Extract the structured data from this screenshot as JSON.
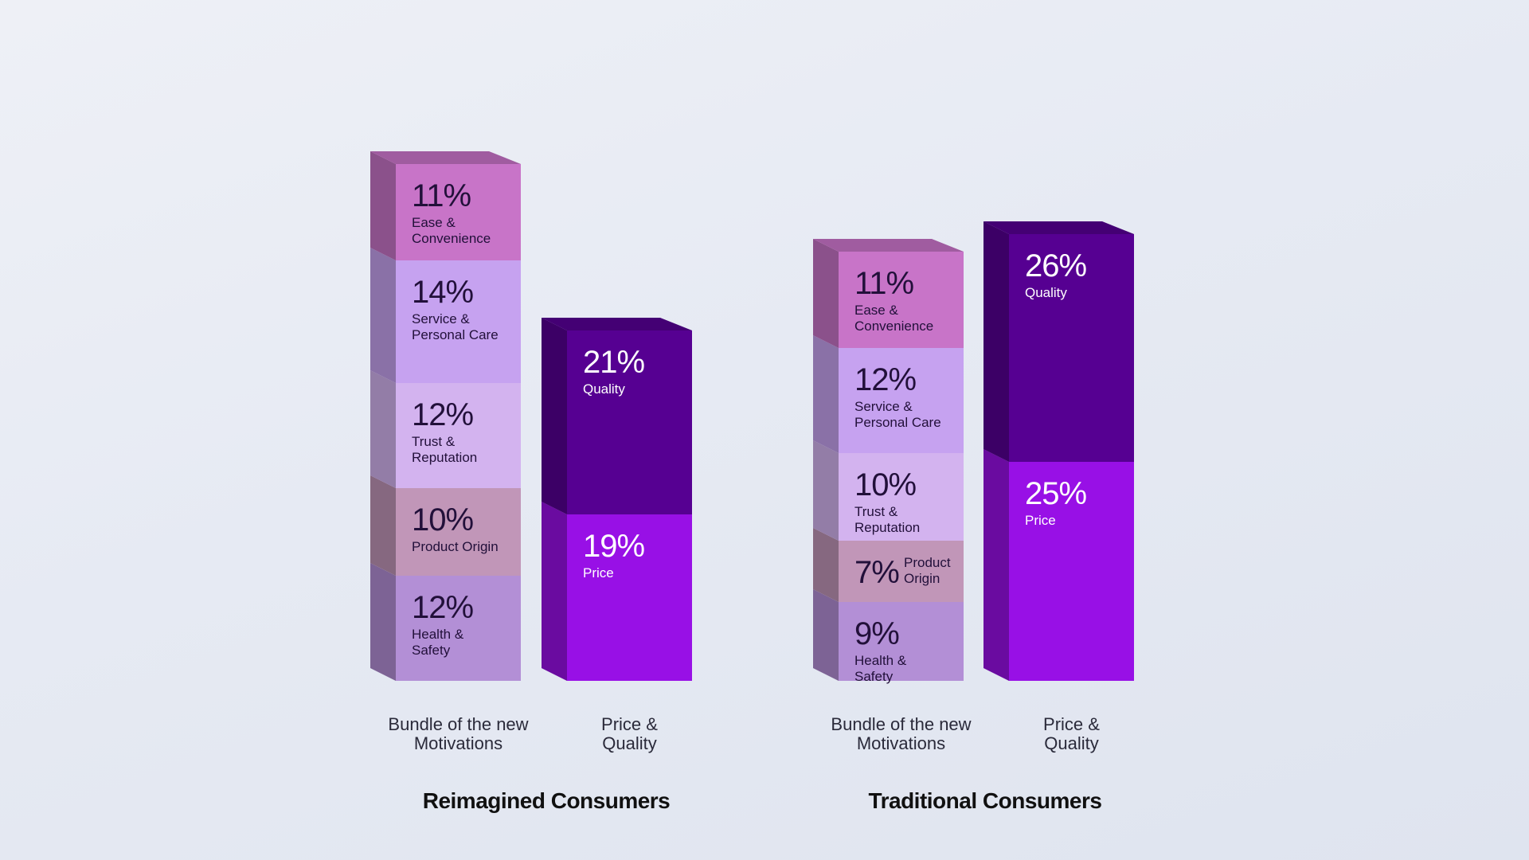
{
  "chart_data": [
    {
      "type": "stacked-bar-3d",
      "title": "Reimagined Consumers",
      "categories": [
        "Bundle of the new Motivations",
        "Price & Quality"
      ],
      "series": [
        {
          "name": "Health & Safety",
          "color": "#b38fd6",
          "values": [
            12,
            null
          ],
          "value_labels": [
            "12%",
            null
          ]
        },
        {
          "name": "Product Origin",
          "color": "#c196b8",
          "values": [
            10,
            null
          ],
          "value_labels": [
            "10%",
            null
          ]
        },
        {
          "name": "Trust & Reputation",
          "color": "#d3b3ef",
          "values": [
            12,
            null
          ],
          "value_labels": [
            "12%",
            null
          ]
        },
        {
          "name": "Service & Personal Care",
          "color": "#c6a2f0",
          "values": [
            14,
            null
          ],
          "value_labels": [
            "14%",
            null
          ]
        },
        {
          "name": "Ease & Convenience",
          "color": "#c874c8",
          "values": [
            11,
            null
          ],
          "value_labels": [
            "11%",
            null
          ]
        },
        {
          "name": "Price",
          "color": "#9810e6",
          "values": [
            null,
            19
          ],
          "value_labels": [
            null,
            "19%"
          ]
        },
        {
          "name": "Quality",
          "color": "#560092",
          "values": [
            null,
            21
          ],
          "value_labels": [
            null,
            "21%"
          ]
        }
      ]
    },
    {
      "type": "stacked-bar-3d",
      "title": "Traditional Consumers",
      "categories": [
        "Bundle of the new Motivations",
        "Price & Quality"
      ],
      "series": [
        {
          "name": "Health & Safety",
          "color": "#b38fd6",
          "values": [
            9,
            null
          ],
          "value_labels": [
            "9%",
            null
          ]
        },
        {
          "name": "Product Origin",
          "color": "#c196b8",
          "values": [
            7,
            null
          ],
          "value_labels": [
            "7%",
            null
          ]
        },
        {
          "name": "Trust & Reputation",
          "color": "#d3b3ef",
          "values": [
            10,
            null
          ],
          "value_labels": [
            "10%",
            null
          ]
        },
        {
          "name": "Service & Personal Care",
          "color": "#c6a2f0",
          "values": [
            12,
            null
          ],
          "value_labels": [
            "12%",
            null
          ]
        },
        {
          "name": "Ease & Convenience",
          "color": "#c874c8",
          "values": [
            11,
            null
          ],
          "value_labels": [
            "11%",
            null
          ]
        },
        {
          "name": "Price",
          "color": "#9810e6",
          "values": [
            null,
            25
          ],
          "value_labels": [
            null,
            "25%"
          ]
        },
        {
          "name": "Quality",
          "color": "#560092",
          "values": [
            null,
            26
          ],
          "value_labels": [
            null,
            "26%"
          ]
        }
      ]
    }
  ]
}
